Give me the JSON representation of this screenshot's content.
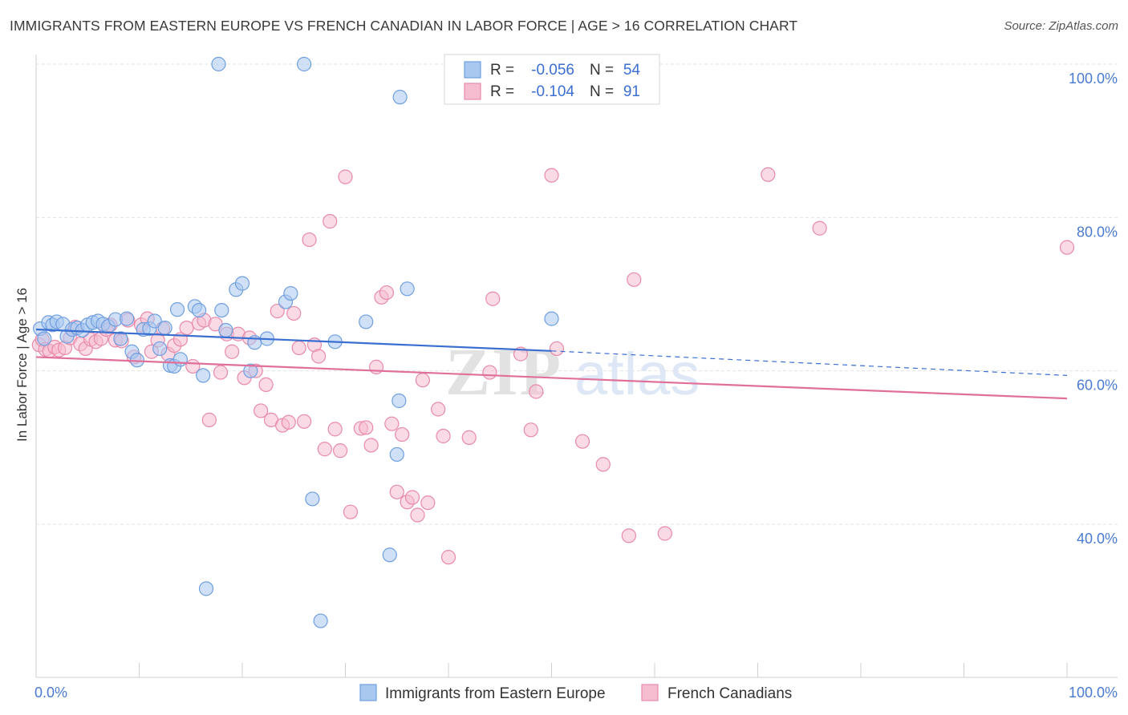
{
  "title": "IMMIGRANTS FROM EASTERN EUROPE VS FRENCH CANADIAN IN LABOR FORCE | AGE > 16 CORRELATION CHART",
  "source": "Source: ZipAtlas.com",
  "watermark": "ZIPatlas",
  "colors": {
    "blue_fill": "#a9c8f0",
    "blue_stroke": "#6f9fe0",
    "blue_line": "#3a6fd1",
    "pink_fill": "#f6bcd0",
    "pink_stroke": "#e88aaa",
    "pink_line": "#e0709a",
    "grid": "#e3e3e3",
    "axis_text": "#4a7bd0"
  },
  "legend": {
    "rows": [
      {
        "r_label": "R =",
        "r_value": "-0.056",
        "n_label": "N =",
        "n_value": "54",
        "series": "blue"
      },
      {
        "r_label": "R =",
        "r_value": "-0.104",
        "n_label": "N =",
        "n_value": "91",
        "series": "pink"
      }
    ]
  },
  "bottom_legend": [
    {
      "label": "Immigrants from Eastern Europe",
      "series": "blue"
    },
    {
      "label": "French Canadians",
      "series": "pink"
    }
  ],
  "chart_data": {
    "type": "scatter",
    "title": "IMMIGRANTS FROM EASTERN EUROPE VS FRENCH CANADIAN IN LABOR FORCE | AGE > 16 CORRELATION CHART",
    "xlabel": "",
    "ylabel": "In Labor Force | Age > 16",
    "xlim": [
      0,
      100
    ],
    "ylim": [
      20,
      102
    ],
    "y_ticks": [
      {
        "value": 40,
        "label": "40.0%"
      },
      {
        "value": 60,
        "label": "60.0%"
      },
      {
        "value": 80,
        "label": "80.0%"
      },
      {
        "value": 100,
        "label": "100.0%"
      }
    ],
    "x_tick_labels": [
      {
        "value": 0,
        "label": "0.0%"
      },
      {
        "value": 100,
        "label": "100.0%"
      }
    ],
    "x_minor_ticks": [
      0,
      10,
      20,
      30,
      40,
      50,
      60,
      70,
      80,
      90,
      100
    ],
    "grid": true,
    "legend_position": "top-center",
    "series": [
      {
        "name": "Immigrants from Eastern Europe",
        "color": "blue",
        "R": -0.056,
        "N": 54,
        "trend": {
          "x0": 0,
          "y0": 65.4,
          "x1": 50,
          "y1": 62.6,
          "dash_to_x": 100,
          "dash_to_y": 59.4
        },
        "points": [
          [
            0.4,
            65.5
          ],
          [
            0.8,
            64.2
          ],
          [
            1.2,
            66.3
          ],
          [
            1.6,
            66.0
          ],
          [
            2.0,
            66.4
          ],
          [
            2.6,
            66.1
          ],
          [
            3.0,
            64.5
          ],
          [
            3.5,
            65.4
          ],
          [
            4.0,
            65.6
          ],
          [
            4.5,
            65.3
          ],
          [
            5.0,
            66.0
          ],
          [
            5.5,
            66.3
          ],
          [
            6.0,
            66.5
          ],
          [
            6.5,
            66.1
          ],
          [
            7.0,
            65.8
          ],
          [
            7.7,
            66.7
          ],
          [
            8.2,
            64.2
          ],
          [
            8.8,
            66.8
          ],
          [
            9.3,
            62.5
          ],
          [
            9.8,
            61.4
          ],
          [
            10.4,
            65.4
          ],
          [
            11.0,
            65.5
          ],
          [
            11.5,
            66.5
          ],
          [
            12.0,
            62.9
          ],
          [
            12.5,
            65.6
          ],
          [
            13.0,
            60.7
          ],
          [
            13.4,
            60.6
          ],
          [
            14.0,
            61.5
          ],
          [
            13.7,
            68.0
          ],
          [
            15.4,
            68.4
          ],
          [
            15.8,
            67.9
          ],
          [
            16.2,
            59.4
          ],
          [
            18.0,
            67.9
          ],
          [
            18.4,
            65.3
          ],
          [
            19.4,
            70.6
          ],
          [
            20.0,
            71.4
          ],
          [
            21.2,
            63.7
          ],
          [
            22.4,
            64.2
          ],
          [
            24.2,
            69.0
          ],
          [
            24.7,
            70.1
          ],
          [
            26.8,
            43.3
          ],
          [
            27.6,
            27.4
          ],
          [
            29.0,
            63.8
          ],
          [
            32.0,
            66.4
          ],
          [
            34.3,
            36.0
          ],
          [
            36.0,
            70.7
          ],
          [
            35.0,
            49.1
          ],
          [
            35.3,
            95.7
          ],
          [
            35.2,
            56.1
          ],
          [
            50.0,
            66.8
          ],
          [
            17.7,
            100.0
          ],
          [
            26.0,
            100.0
          ],
          [
            16.5,
            31.6
          ],
          [
            20.8,
            60.0
          ]
        ]
      },
      {
        "name": "French Canadians",
        "color": "pink",
        "R": -0.104,
        "N": 91,
        "trend": {
          "x0": 0,
          "y0": 61.8,
          "x1": 100,
          "y1": 56.4
        },
        "points": [
          [
            0.3,
            63.4
          ],
          [
            0.6,
            64.1
          ],
          [
            0.9,
            62.8
          ],
          [
            1.3,
            62.6
          ],
          [
            1.8,
            63.1
          ],
          [
            2.2,
            62.7
          ],
          [
            2.8,
            63.0
          ],
          [
            3.3,
            64.3
          ],
          [
            3.8,
            65.7
          ],
          [
            4.3,
            63.5
          ],
          [
            4.8,
            62.9
          ],
          [
            5.3,
            64.1
          ],
          [
            5.8,
            63.8
          ],
          [
            6.3,
            64.2
          ],
          [
            6.8,
            65.4
          ],
          [
            7.2,
            66.0
          ],
          [
            7.7,
            64.0
          ],
          [
            8.3,
            63.9
          ],
          [
            8.9,
            66.6
          ],
          [
            9.5,
            61.8
          ],
          [
            10.2,
            66.0
          ],
          [
            10.8,
            66.8
          ],
          [
            11.2,
            62.5
          ],
          [
            11.8,
            64.0
          ],
          [
            12.3,
            65.5
          ],
          [
            12.8,
            62.2
          ],
          [
            13.4,
            63.3
          ],
          [
            14.0,
            64.1
          ],
          [
            14.6,
            65.6
          ],
          [
            15.2,
            60.6
          ],
          [
            15.8,
            66.2
          ],
          [
            16.3,
            66.6
          ],
          [
            16.8,
            53.6
          ],
          [
            17.4,
            66.1
          ],
          [
            17.9,
            59.8
          ],
          [
            18.5,
            64.8
          ],
          [
            19.0,
            62.5
          ],
          [
            19.6,
            64.8
          ],
          [
            20.2,
            59.1
          ],
          [
            20.7,
            64.3
          ],
          [
            21.3,
            60.0
          ],
          [
            21.8,
            54.8
          ],
          [
            22.3,
            58.2
          ],
          [
            22.8,
            53.6
          ],
          [
            23.4,
            67.8
          ],
          [
            23.9,
            52.9
          ],
          [
            24.5,
            53.3
          ],
          [
            25.0,
            67.5
          ],
          [
            25.5,
            63.0
          ],
          [
            26.0,
            53.4
          ],
          [
            26.5,
            77.1
          ],
          [
            27.0,
            63.4
          ],
          [
            27.4,
            61.9
          ],
          [
            28.0,
            49.8
          ],
          [
            28.5,
            79.5
          ],
          [
            29.0,
            52.4
          ],
          [
            29.5,
            49.6
          ],
          [
            30.0,
            85.3
          ],
          [
            30.5,
            41.6
          ],
          [
            31.5,
            52.5
          ],
          [
            32.0,
            52.6
          ],
          [
            32.5,
            50.3
          ],
          [
            33.0,
            60.5
          ],
          [
            33.5,
            69.6
          ],
          [
            34.0,
            70.2
          ],
          [
            34.5,
            53.1
          ],
          [
            35.0,
            44.2
          ],
          [
            35.5,
            51.7
          ],
          [
            36.0,
            42.9
          ],
          [
            36.5,
            43.5
          ],
          [
            37.0,
            41.2
          ],
          [
            37.5,
            58.8
          ],
          [
            38.0,
            42.8
          ],
          [
            39.0,
            55.0
          ],
          [
            39.5,
            51.5
          ],
          [
            40.0,
            35.7
          ],
          [
            42.0,
            51.3
          ],
          [
            44.0,
            59.8
          ],
          [
            44.3,
            69.4
          ],
          [
            47.0,
            62.2
          ],
          [
            48.0,
            52.3
          ],
          [
            48.5,
            57.3
          ],
          [
            50.0,
            85.5
          ],
          [
            50.5,
            62.9
          ],
          [
            53.0,
            50.8
          ],
          [
            55.0,
            47.8
          ],
          [
            57.5,
            38.5
          ],
          [
            58.0,
            71.9
          ],
          [
            61.0,
            38.8
          ],
          [
            71.0,
            85.6
          ],
          [
            76.0,
            78.6
          ],
          [
            100.0,
            76.1
          ]
        ]
      }
    ]
  }
}
